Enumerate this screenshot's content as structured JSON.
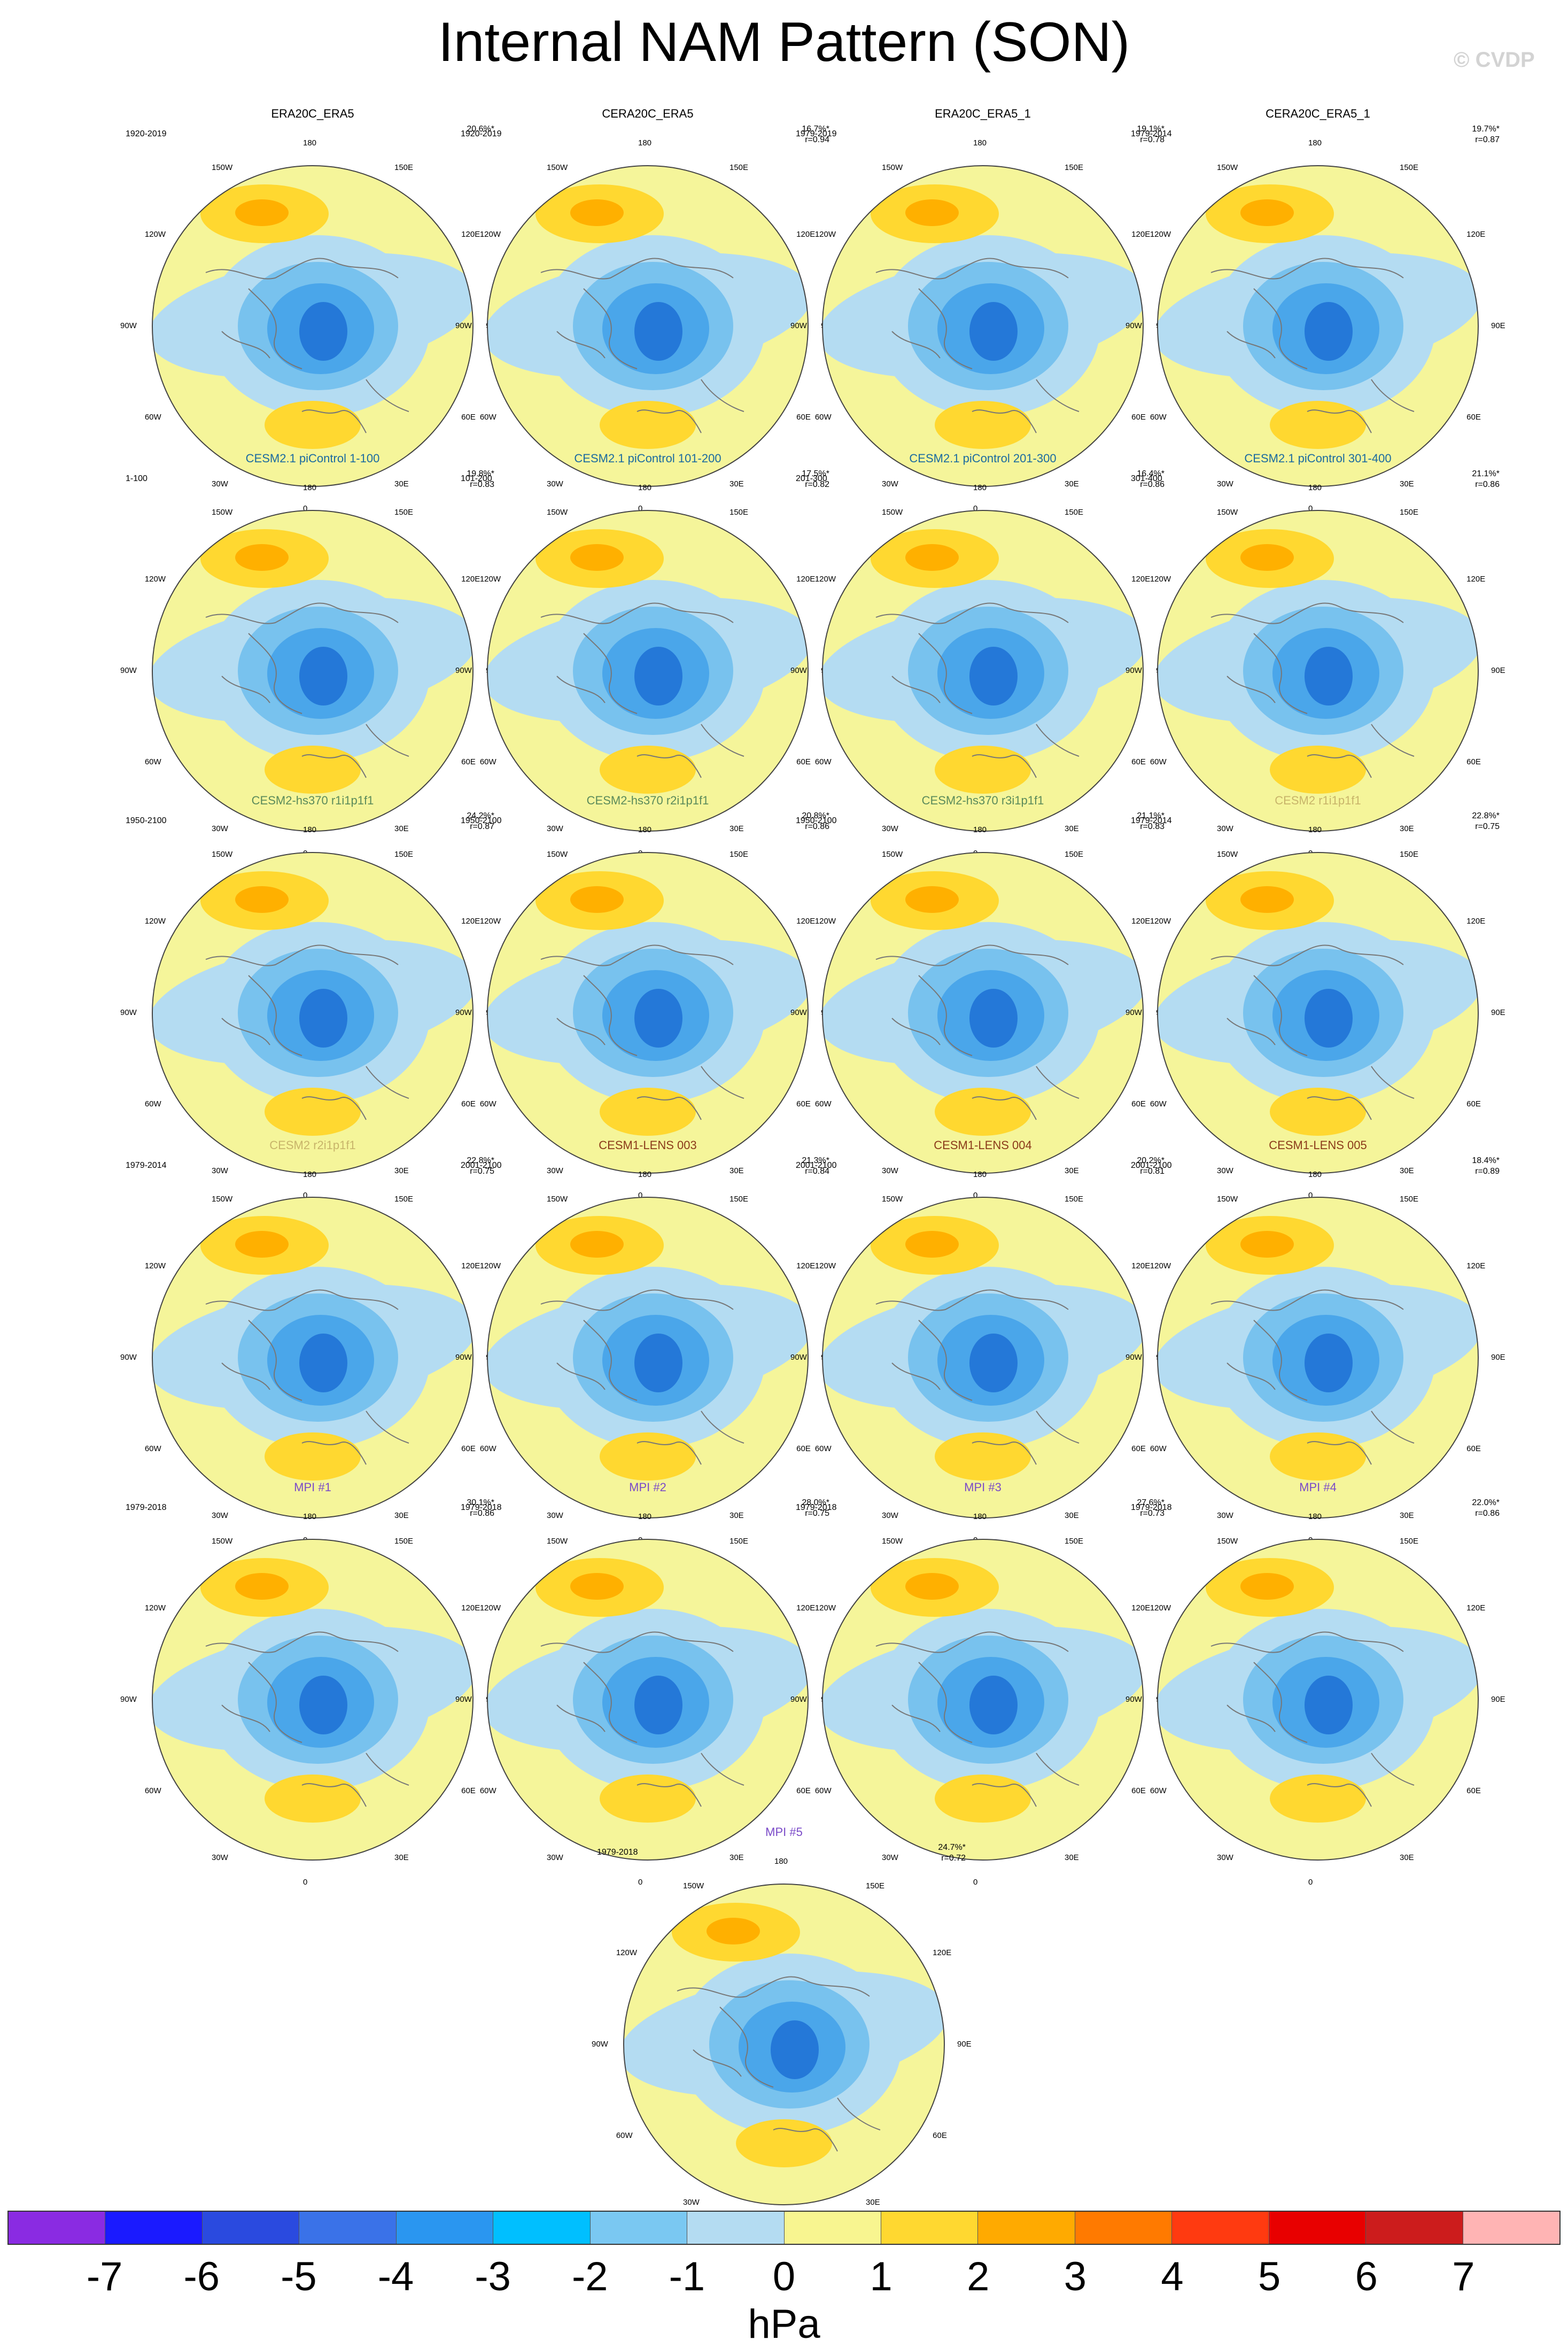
{
  "title": "Internal NAM Pattern (SON)",
  "watermark": "© CVDP",
  "longitude_labels": [
    "180",
    "150E",
    "120E",
    "90E",
    "60E",
    "30E",
    "0",
    "30W",
    "60W",
    "90W",
    "120W",
    "150W"
  ],
  "colors": {
    "title_colors": {
      "obs": "#000000",
      "cesm21_picontrol": "#1a6aa0",
      "cesm2_hs370": "#5a8a5a",
      "cesm2": "#c8b46a",
      "cesm1_lens": "#8b3a1a",
      "mpi": "#7a4ac8"
    },
    "map_scale": [
      "#f5f59a",
      "#b4dcf2",
      "#78c2ee",
      "#4aa6ea",
      "#2478d8",
      "#ffd830",
      "#ffb000",
      "#ff8000"
    ]
  },
  "panels": [
    {
      "title": "ERA20C_ERA5",
      "title_color": "#000000",
      "period": "1920-2019",
      "pct": "20.6%*",
      "r": ""
    },
    {
      "title": "CERA20C_ERA5",
      "title_color": "#000000",
      "period": "1920-2019",
      "pct": "16.7%*",
      "r": "r=0.94"
    },
    {
      "title": "ERA20C_ERA5_1",
      "title_color": "#000000",
      "period": "1979-2019",
      "pct": "19.1%*",
      "r": "r=0.78"
    },
    {
      "title": "CERA20C_ERA5_1",
      "title_color": "#000000",
      "period": "1979-2014",
      "pct": "19.7%*",
      "r": "r=0.87"
    },
    {
      "title": "CESM2.1 piControl 1-100",
      "title_color": "#1a6aa0",
      "period": "1-100",
      "pct": "19.8%*",
      "r": "r=0.83"
    },
    {
      "title": "CESM2.1 piControl 101-200",
      "title_color": "#1a6aa0",
      "period": "101-200",
      "pct": "17.5%*",
      "r": "r=0.82"
    },
    {
      "title": "CESM2.1 piControl 201-300",
      "title_color": "#1a6aa0",
      "period": "201-300",
      "pct": "16.4%*",
      "r": "r=0.86"
    },
    {
      "title": "CESM2.1 piControl 301-400",
      "title_color": "#1a6aa0",
      "period": "301-400",
      "pct": "21.1%*",
      "r": "r=0.86"
    },
    {
      "title": "CESM2-hs370 r1i1p1f1",
      "title_color": "#5a8a5a",
      "period": "1950-2100",
      "pct": "24.2%*",
      "r": "r=0.87"
    },
    {
      "title": "CESM2-hs370 r2i1p1f1",
      "title_color": "#5a8a5a",
      "period": "1950-2100",
      "pct": "20.8%*",
      "r": "r=0.86"
    },
    {
      "title": "CESM2-hs370 r3i1p1f1",
      "title_color": "#5a8a5a",
      "period": "1950-2100",
      "pct": "21.1%*",
      "r": "r=0.83"
    },
    {
      "title": "CESM2 r1i1p1f1",
      "title_color": "#c8b46a",
      "period": "1979-2014",
      "pct": "22.8%*",
      "r": "r=0.75"
    },
    {
      "title": "CESM2 r2i1p1f1",
      "title_color": "#c8b46a",
      "period": "1979-2014",
      "pct": "22.8%*",
      "r": "r=0.75"
    },
    {
      "title": "CESM1-LENS 003",
      "title_color": "#8b3a1a",
      "period": "2001-2100",
      "pct": "21.3%*",
      "r": "r=0.84"
    },
    {
      "title": "CESM1-LENS 004",
      "title_color": "#8b3a1a",
      "period": "2001-2100",
      "pct": "20.2%*",
      "r": "r=0.81"
    },
    {
      "title": "CESM1-LENS 005",
      "title_color": "#8b3a1a",
      "period": "2001-2100",
      "pct": "18.4%*",
      "r": "r=0.89"
    },
    {
      "title": "MPI #1",
      "title_color": "#7a4ac8",
      "period": "1979-2018",
      "pct": "30.1%*",
      "r": "r=0.86"
    },
    {
      "title": "MPI #2",
      "title_color": "#7a4ac8",
      "period": "1979-2018",
      "pct": "28.0%*",
      "r": "r=0.75"
    },
    {
      "title": "MPI #3",
      "title_color": "#7a4ac8",
      "period": "1979-2018",
      "pct": "27.6%*",
      "r": "r=0.73"
    },
    {
      "title": "MPI #4",
      "title_color": "#7a4ac8",
      "period": "1979-2018",
      "pct": "22.0%*",
      "r": "r=0.86"
    },
    {
      "title": "MPI #5",
      "title_color": "#7a4ac8",
      "period": "1979-2018",
      "pct": "24.7%*",
      "r": "r=0.72"
    }
  ],
  "colorbar": {
    "colors": [
      "#8a2be2",
      "#1a1aff",
      "#2a4adf",
      "#3a72e8",
      "#2a96f0",
      "#00bfff",
      "#7ac8f2",
      "#b4dcf2",
      "#f8f590",
      "#ffd830",
      "#ffaa00",
      "#ff7a00",
      "#ff3a10",
      "#e80000",
      "#cc1c1c",
      "#ffb4b4"
    ],
    "ticks": [
      "-7",
      "-6",
      "-5",
      "-4",
      "-3",
      "-2",
      "-1",
      "0",
      "1",
      "2",
      "3",
      "4",
      "5",
      "6",
      "7"
    ],
    "units": "hPa"
  }
}
